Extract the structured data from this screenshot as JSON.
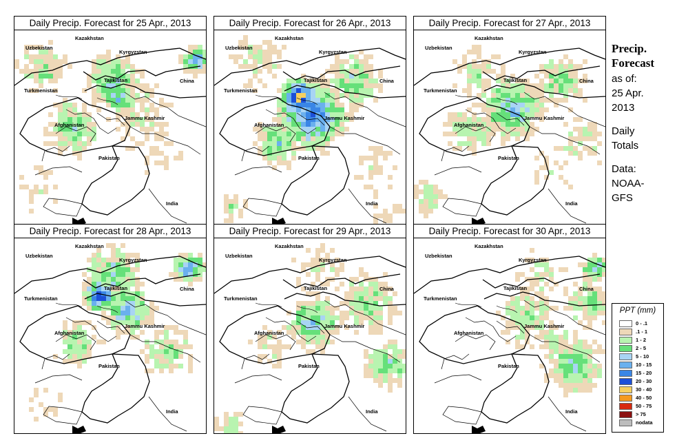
{
  "panels": [
    {
      "title": "Daily Precip. Forecast for  25 Apr., 2013"
    },
    {
      "title": "Daily Precip. Forecast for  26 Apr., 2013"
    },
    {
      "title": "Daily Precip. Forecast for  27 Apr., 2013"
    },
    {
      "title": "Daily Precip. Forecast for  28 Apr., 2013"
    },
    {
      "title": "Daily Precip. Forecast for  29 Apr., 2013"
    },
    {
      "title": "Daily Precip. Forecast for  30 Apr., 2013"
    }
  ],
  "map_labels": {
    "kazakhstan": "Kazakhstan",
    "uzbekistan": "Uzbekistan",
    "kyrgyzstan": "Kyrgyzstan",
    "tajikistan": "Tajikistan",
    "china": "China",
    "turkmenistan": "Turkmenistan",
    "afghanistan": "Afghanistan",
    "jammu_kashmir": "Jammu Kashmir",
    "pakistan": "Pakistan",
    "india": "India"
  },
  "side": {
    "title_line1": "Precip.",
    "title_line2": "Forecast",
    "asof_line1": "as of:",
    "asof_line2": "25 Apr.",
    "asof_line3": "2013",
    "totals_line1": "Daily",
    "totals_line2": "Totals",
    "data_line1": "Data:",
    "data_line2": "NOAA-",
    "data_line3": "GFS"
  },
  "legend": {
    "title": "PPT (mm)",
    "items": [
      {
        "label": "0 - .1",
        "color": "#ffffff"
      },
      {
        "label": ".1 - 1",
        "color": "#eed8b8"
      },
      {
        "label": "1 - 2",
        "color": "#b8f4b0"
      },
      {
        "label": "2 - 5",
        "color": "#66e07a"
      },
      {
        "label": "5 - 10",
        "color": "#a8d4f4"
      },
      {
        "label": "10 - 15",
        "color": "#6ab0ee"
      },
      {
        "label": "15 - 20",
        "color": "#3a86e6"
      },
      {
        "label": "20 - 30",
        "color": "#1c50d8"
      },
      {
        "label": "30 - 40",
        "color": "#f6d060"
      },
      {
        "label": "40 - 50",
        "color": "#f59a20"
      },
      {
        "label": "50 - 75",
        "color": "#d82a10"
      },
      {
        "label": "> 75",
        "color": "#8c1010"
      },
      {
        "label": "nodata",
        "color": "#bdbdbd"
      }
    ]
  }
}
